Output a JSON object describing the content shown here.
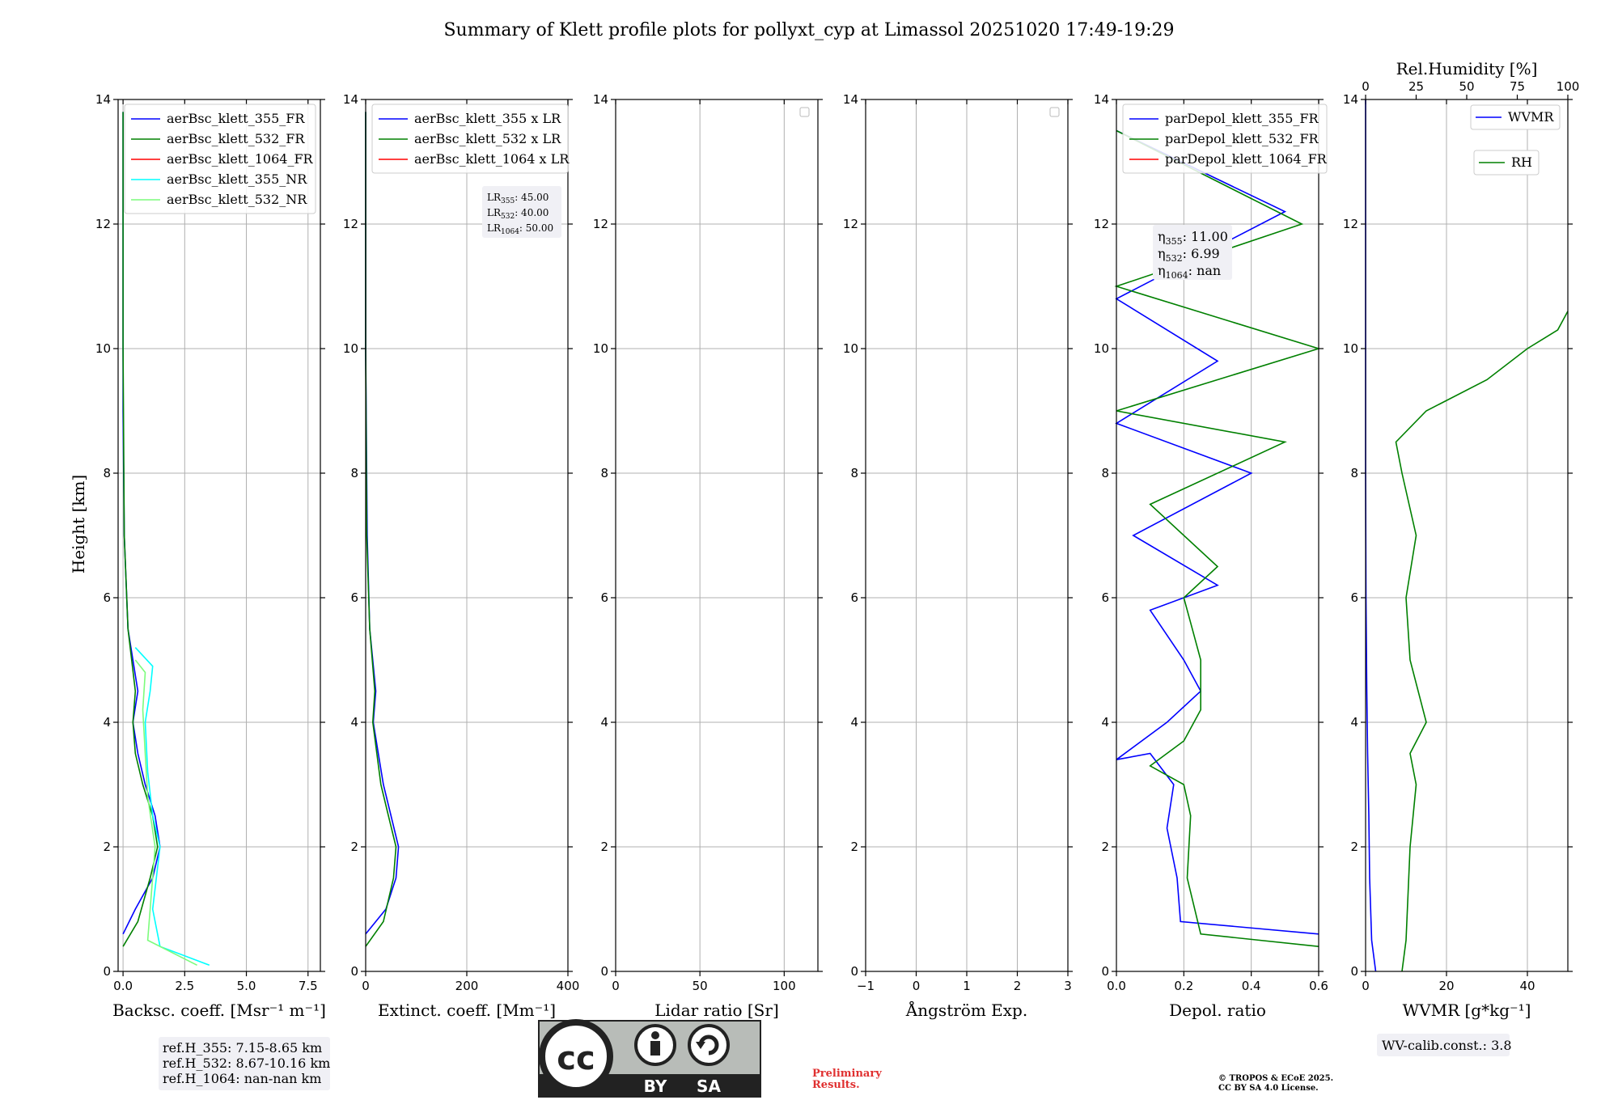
{
  "title": "Summary of Klett profile plots for pollyxt_cyp at Limassol 20251020 17:49-19:29",
  "ylabel": "Height [km]",
  "y_ticks": [
    "0",
    "2",
    "4",
    "6",
    "8",
    "10",
    "12",
    "14"
  ],
  "panels": [
    {
      "xlabel": "Backsc. coeff. [Msr⁻¹ m⁻¹]",
      "xlim": [
        -0.2,
        8
      ],
      "x_ticks": [
        0,
        2.5,
        5.0,
        7.5
      ],
      "x_tick_labels": [
        "0.0",
        "2.5",
        "5.0",
        "7.5"
      ],
      "legend": [
        "aerBsc_klett_355_FR",
        "aerBsc_klett_532_FR",
        "aerBsc_klett_1064_FR",
        "aerBsc_klett_355_NR",
        "aerBsc_klett_532_NR"
      ]
    },
    {
      "xlabel": "Extinct. coeff. [Mm⁻¹]",
      "xlim": [
        0,
        400
      ],
      "x_ticks": [
        0,
        200,
        400
      ],
      "x_tick_labels": [
        "0",
        "200",
        "400"
      ],
      "legend": [
        "aerBsc_klett_355 x LR",
        "aerBsc_klett_532 x LR",
        "aerBsc_klett_1064 x LR"
      ],
      "lidar_ratios": {
        "lr355": "45.00",
        "lr532": "40.00",
        "lr1064": "50.00"
      }
    },
    {
      "xlabel": "Lidar ratio [Sr]",
      "xlim": [
        0,
        120
      ],
      "x_ticks": [
        0,
        50,
        100
      ],
      "x_tick_labels": [
        "0",
        "50",
        "100"
      ]
    },
    {
      "xlabel": "Ångström Exp.",
      "xlim": [
        -1,
        3
      ],
      "x_ticks": [
        -1,
        0,
        1,
        2,
        3
      ],
      "x_tick_labels": [
        "−1",
        "0",
        "1",
        "2",
        "3"
      ]
    },
    {
      "xlabel": "Depol. ratio",
      "xlim": [
        0,
        0.6
      ],
      "x_ticks": [
        0,
        0.2,
        0.4,
        0.6
      ],
      "x_tick_labels": [
        "0.0",
        "0.2",
        "0.4",
        "0.6"
      ],
      "legend": [
        "parDepol_klett_355_FR",
        "parDepol_klett_532_FR",
        "parDepol_klett_1064_FR"
      ],
      "eta": {
        "e355": "11.00",
        "e532": "6.99",
        "e1064": "nan"
      }
    },
    {
      "xlabel": "WVMR [g*kg⁻¹]",
      "xlim": [
        0,
        50
      ],
      "x_ticks": [
        0,
        20,
        40
      ],
      "x_tick_labels": [
        "0",
        "20",
        "40"
      ],
      "top_label": "Rel.Humidity [%]",
      "top_ticks": [
        0,
        25,
        50,
        75,
        100
      ],
      "top_tick_labels": [
        "0",
        "25",
        "50",
        "75",
        "100"
      ],
      "legend": [
        "WVMR",
        "RH"
      ]
    }
  ],
  "ref_heights": {
    "h355": "ref.H_355: 7.15-8.65 km",
    "h532": "ref.H_532: 8.67-10.16 km",
    "h1064": "ref.H_1064: nan-nan km"
  },
  "wv_calib": "WV-calib.const.: 3.8",
  "license_badge": {
    "cc": "cc",
    "by": "BY",
    "sa": "SA"
  },
  "preliminary": [
    "Preliminary",
    "Results."
  ],
  "copyright": [
    "© TROPOS & ECoE 2025.",
    "CC BY SA 4.0 License."
  ],
  "colors": {
    "c355": "#0000ff",
    "c532": "#008000",
    "c1064": "#ff0000",
    "c355nr": "#00ffff",
    "c532nr": "#7cfc7c",
    "grid": "#b0b0b0",
    "legend_bg": "#f0f0f5"
  },
  "chart_data": {
    "type": "line",
    "ylim": [
      0,
      14
    ],
    "grid": true,
    "legend_placement": "top",
    "series": [
      {
        "name": "aerBsc_klett_355_FR",
        "panel": 0,
        "x": [
          0.0,
          0.5,
          1.2,
          1.5,
          1.3,
          0.9,
          0.6,
          0.4,
          0.6,
          0.2,
          0.05,
          0.0,
          0.0,
          0.0
        ],
        "y": [
          0.6,
          1.0,
          1.5,
          2.0,
          2.5,
          3.0,
          3.5,
          4.0,
          4.5,
          5.5,
          7.0,
          9.0,
          11.0,
          13.8
        ]
      },
      {
        "name": "aerBsc_klett_532_FR",
        "panel": 0,
        "x": [
          0.0,
          0.6,
          1.1,
          1.4,
          1.2,
          0.8,
          0.5,
          0.4,
          0.5,
          0.2,
          0.05,
          0.0,
          0.0
        ],
        "y": [
          0.4,
          0.8,
          1.5,
          2.0,
          2.5,
          3.0,
          3.5,
          4.0,
          4.5,
          5.5,
          7.0,
          10.0,
          13.8
        ]
      },
      {
        "name": "aerBsc_klett_355_NR",
        "panel": 0,
        "x": [
          3.5,
          1.5,
          1.2,
          1.5,
          1.2,
          1.0,
          0.9,
          1.1,
          1.2,
          0.5
        ],
        "y": [
          0.1,
          0.4,
          1.0,
          2.0,
          2.5,
          3.2,
          4.0,
          4.5,
          4.9,
          5.2
        ]
      },
      {
        "name": "aerBsc_klett_532_NR",
        "panel": 0,
        "x": [
          3.0,
          1.0,
          1.1,
          1.3,
          1.0,
          0.9,
          0.8,
          0.9,
          0.5
        ],
        "y": [
          0.1,
          0.5,
          1.0,
          2.0,
          2.8,
          3.5,
          4.2,
          4.8,
          5.0
        ]
      },
      {
        "name": "aerBsc_klett_355 x LR",
        "panel": 1,
        "x": [
          0,
          40,
          60,
          65,
          50,
          35,
          25,
          15,
          20,
          8,
          3,
          0,
          0
        ],
        "y": [
          0.6,
          1.0,
          1.5,
          2.0,
          2.5,
          3.0,
          3.5,
          4.0,
          4.5,
          5.5,
          7.0,
          10.0,
          13.8
        ]
      },
      {
        "name": "aerBsc_klett_532 x LR",
        "panel": 1,
        "x": [
          0,
          35,
          55,
          60,
          45,
          30,
          22,
          14,
          18,
          8,
          2,
          0,
          0
        ],
        "y": [
          0.4,
          0.8,
          1.5,
          2.0,
          2.5,
          3.0,
          3.5,
          4.0,
          4.5,
          5.5,
          7.0,
          10.0,
          13.8
        ]
      },
      {
        "name": "parDepol_klett_355_FR",
        "panel": 4,
        "x": [
          0.6,
          0.19,
          0.18,
          0.15,
          0.17,
          0.1,
          0.0,
          0.15,
          0.25,
          0.2,
          0.1,
          0.3,
          0.05,
          0.4,
          0.0,
          0.3,
          0.0,
          0.5,
          0.0
        ],
        "y": [
          0.6,
          0.8,
          1.5,
          2.3,
          3.0,
          3.5,
          3.4,
          4.0,
          4.5,
          5.0,
          5.8,
          6.2,
          7.0,
          8.0,
          8.8,
          9.8,
          10.8,
          12.2,
          13.5
        ]
      },
      {
        "name": "parDepol_klett_532_FR",
        "panel": 4,
        "x": [
          0.6,
          0.25,
          0.21,
          0.22,
          0.2,
          0.1,
          0.2,
          0.25,
          0.25,
          0.22,
          0.2,
          0.3,
          0.1,
          0.5,
          0.0,
          0.6,
          0.0,
          0.55,
          0.0
        ],
        "y": [
          0.4,
          0.6,
          1.5,
          2.5,
          3.0,
          3.3,
          3.7,
          4.2,
          5.0,
          5.6,
          6.0,
          6.5,
          7.5,
          8.5,
          9.0,
          10.0,
          11.0,
          12.0,
          13.5
        ]
      },
      {
        "name": "WVMR",
        "panel": 5,
        "x": [
          2.5,
          1.5,
          1.0,
          0.8,
          0.5,
          0.3,
          0.1,
          0.0,
          0.0
        ],
        "y": [
          0.0,
          0.5,
          1.5,
          2.5,
          3.5,
          4.5,
          6.0,
          8.0,
          14.0
        ]
      },
      {
        "name": "RH",
        "panel": 5,
        "axis": "top",
        "x": [
          18,
          20,
          22,
          25,
          22,
          30,
          22,
          20,
          25,
          18,
          15,
          30,
          60,
          80,
          95,
          100
        ],
        "y": [
          0.0,
          0.5,
          2.0,
          3.0,
          3.5,
          4.0,
          5.0,
          6.0,
          7.0,
          8.0,
          8.5,
          9.0,
          9.5,
          10.0,
          10.3,
          10.6
        ]
      }
    ]
  }
}
